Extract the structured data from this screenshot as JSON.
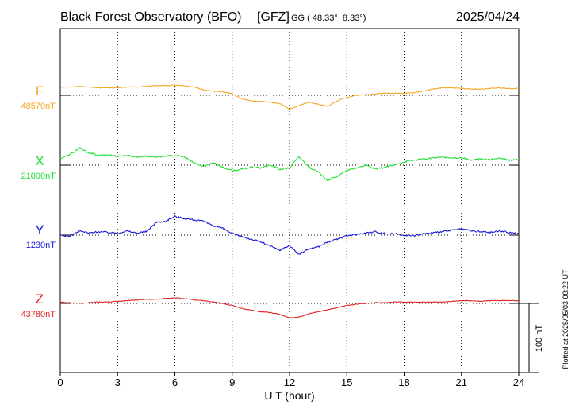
{
  "chart_data": {
    "type": "line",
    "title": "Black Forest Observatory (BFO)",
    "institute": "[GFZ]",
    "coordinates": "GG ( 48.33°,   8.33°)",
    "date": "2025/04/24",
    "xlabel": "U T (hour)",
    "xlim": [
      0,
      24
    ],
    "x_ticks": [
      "0",
      "3",
      "6",
      "9",
      "12",
      "15",
      "18",
      "21",
      "24"
    ],
    "grid": true,
    "scale_bar_label": "100 nT",
    "plotted_note": "Plotted at 2025/05/03 00:22 UT",
    "series": [
      {
        "name": "F",
        "baseline_label": "48570nT",
        "color": "#f5a623",
        "x": [
          0,
          0.5,
          1,
          1.5,
          2,
          2.5,
          3,
          3.5,
          4,
          4.5,
          5,
          5.5,
          6,
          6.5,
          7,
          7.5,
          8,
          8.5,
          9,
          9.5,
          10,
          10.5,
          11,
          11.5,
          12,
          12.5,
          13,
          13.5,
          14,
          14.5,
          15,
          15.5,
          16,
          16.5,
          17,
          17.5,
          18,
          18.5,
          19,
          19.5,
          20,
          20.5,
          21,
          21.5,
          22,
          22.5,
          23,
          23.5,
          24
        ],
        "y": [
          12,
          12,
          13,
          12,
          11,
          11,
          11,
          12,
          12,
          13,
          14,
          14,
          15,
          14,
          12,
          8,
          6,
          5,
          2,
          -5,
          -8,
          -9,
          -10,
          -12,
          -20,
          -15,
          -10,
          -13,
          -16,
          -8,
          -3,
          0,
          1,
          2,
          3,
          3,
          3,
          4,
          6,
          9,
          11,
          11,
          10,
          9,
          9,
          10,
          11,
          10,
          10
        ]
      },
      {
        "name": "X",
        "baseline_label": "21000nT",
        "color": "#22dd33",
        "x": [
          0,
          0.5,
          1,
          1.5,
          2,
          2.5,
          3,
          3.5,
          4,
          4.5,
          5,
          5.5,
          6,
          6.5,
          7,
          7.5,
          8,
          8.5,
          9,
          9.5,
          10,
          10.5,
          11,
          11.5,
          12,
          12.5,
          13,
          13.5,
          14,
          14.5,
          15,
          15.5,
          16,
          16.5,
          17,
          17.5,
          18,
          18.5,
          19,
          19.5,
          20,
          20.5,
          21,
          21.5,
          22,
          22.5,
          23,
          23.5,
          24
        ],
        "y": [
          10,
          15,
          25,
          18,
          14,
          15,
          13,
          14,
          12,
          13,
          12,
          13,
          14,
          12,
          3,
          -2,
          4,
          -3,
          -8,
          -6,
          -3,
          -4,
          0,
          -6,
          -4,
          12,
          -2,
          -10,
          -22,
          -16,
          -8,
          -4,
          0,
          -6,
          -3,
          0,
          5,
          7,
          9,
          10,
          12,
          10,
          11,
          7,
          9,
          8,
          10,
          7,
          8
        ]
      },
      {
        "name": "Y",
        "baseline_label": "1230nT",
        "color": "#1a1ad6",
        "x": [
          0,
          0.5,
          1,
          1.5,
          2,
          2.5,
          3,
          3.5,
          4,
          4.5,
          5,
          5.5,
          6,
          6.5,
          7,
          7.5,
          8,
          8.5,
          9,
          9.5,
          10,
          10.5,
          11,
          11.5,
          12,
          12.5,
          13,
          13.5,
          14,
          14.5,
          15,
          15.5,
          16,
          16.5,
          17,
          17.5,
          18,
          18.5,
          19,
          19.5,
          20,
          20.5,
          21,
          21.5,
          22,
          22.5,
          23,
          23.5,
          24
        ],
        "y": [
          0,
          -2,
          6,
          3,
          5,
          4,
          3,
          6,
          3,
          5,
          18,
          20,
          27,
          24,
          22,
          20,
          14,
          10,
          2,
          -2,
          -6,
          -10,
          -16,
          -22,
          -15,
          -28,
          -20,
          -17,
          -10,
          -6,
          -1,
          1,
          3,
          5,
          2,
          2,
          0,
          -1,
          2,
          3,
          5,
          7,
          9,
          6,
          5,
          4,
          6,
          4,
          2
        ]
      },
      {
        "name": "Z",
        "baseline_label": "43780nT",
        "color": "#e02020",
        "x": [
          0,
          0.5,
          1,
          1.5,
          2,
          2.5,
          3,
          3.5,
          4,
          4.5,
          5,
          5.5,
          6,
          6.5,
          7,
          7.5,
          8,
          8.5,
          9,
          9.5,
          10,
          10.5,
          11,
          11.5,
          12,
          12.5,
          13,
          13.5,
          14,
          14.5,
          15,
          15.5,
          16,
          16.5,
          17,
          17.5,
          18,
          18.5,
          19,
          19.5,
          20,
          20.5,
          21,
          21.5,
          22,
          22.5,
          23,
          23.5,
          24
        ],
        "y": [
          2,
          1,
          0,
          1,
          2,
          2,
          3,
          4,
          5,
          6,
          6,
          7,
          8,
          7,
          5,
          4,
          2,
          0,
          -3,
          -7,
          -10,
          -12,
          -13,
          -16,
          -21,
          -20,
          -15,
          -12,
          -9,
          -6,
          -3,
          -1,
          0,
          1,
          1,
          2,
          2,
          2,
          2,
          2,
          2,
          3,
          4,
          4,
          3,
          4,
          4,
          4,
          4
        ]
      }
    ]
  }
}
